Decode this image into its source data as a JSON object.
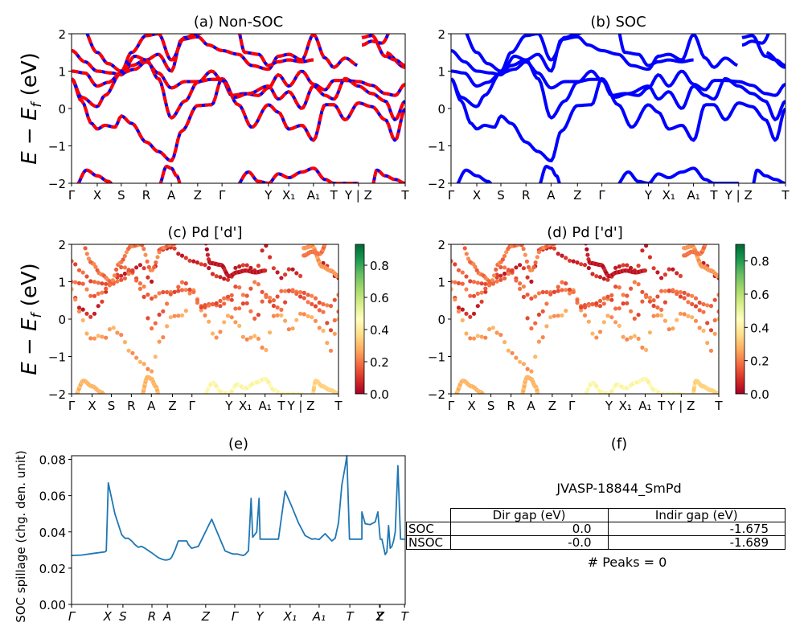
{
  "figure": {
    "material_id": "JVASP-18844_SmPd",
    "peaks_text": "# Peaks = 0"
  },
  "chart_data": [
    {
      "id": "a",
      "type": "line",
      "title": "(a) Non-SOC",
      "xlabel": "",
      "ylabel": "E − E_f (eV)",
      "ylim": [
        -2,
        2
      ],
      "yticks": [
        "2",
        "1",
        "0",
        "−1",
        "−2"
      ],
      "ytick_values": [
        2,
        1,
        0,
        -1,
        -2
      ],
      "xticks": [
        "Γ",
        "X",
        "S",
        "R",
        "A",
        "Z",
        "Γ",
        "Y",
        "X₁",
        "A₁",
        "T",
        "Y | Z",
        "T"
      ],
      "xtick_positions": [
        0,
        0.077,
        0.149,
        0.224,
        0.299,
        0.378,
        0.451,
        0.59,
        0.651,
        0.725,
        0.786,
        0.86,
        1.0
      ],
      "style": "red-blue dashed",
      "colors": {
        "primary": "#ff0000",
        "secondary": "#0000ff"
      },
      "grid": false
    },
    {
      "id": "b",
      "type": "line",
      "title": "(b) SOC",
      "xlabel": "",
      "ylabel": "",
      "ylim": [
        -2,
        2
      ],
      "yticks": [
        "2",
        "1",
        "0",
        "−1",
        "−2"
      ],
      "ytick_values": [
        2,
        1,
        0,
        -1,
        -2
      ],
      "xticks": [
        "Γ",
        "X",
        "S",
        "R",
        "A",
        "Z",
        "Γ",
        "Y",
        "X₁",
        "A₁",
        "T",
        "Y | Z",
        "T"
      ],
      "xtick_positions": [
        0,
        0.077,
        0.149,
        0.224,
        0.299,
        0.378,
        0.451,
        0.59,
        0.651,
        0.725,
        0.786,
        0.86,
        1.0
      ],
      "style": "solid",
      "colors": {
        "primary": "#0000ff"
      },
      "grid": false
    },
    {
      "id": "c",
      "type": "scatter",
      "title": "(c)  Pd ['d']",
      "ylabel": "E − E_f (eV)",
      "ylim": [
        -2,
        2
      ],
      "yticks": [
        "2",
        "1",
        "0",
        "−1",
        "−2"
      ],
      "ytick_values": [
        2,
        1,
        0,
        -1,
        -2
      ],
      "xticks": [
        "Γ",
        "X",
        "S",
        "R",
        "A",
        "Z",
        "Γ",
        "Y",
        "X₁",
        "A₁",
        "T",
        "Y | Z",
        "T"
      ],
      "xtick_positions": [
        0,
        0.077,
        0.149,
        0.224,
        0.299,
        0.378,
        0.451,
        0.59,
        0.651,
        0.725,
        0.786,
        0.86,
        1.0
      ],
      "colorbar": {
        "colormap": "RdYlGn",
        "range": [
          0,
          0.93
        ],
        "ticks": [
          "0.0",
          "0.2",
          "0.4",
          "0.6",
          "0.8"
        ],
        "tick_values": [
          0,
          0.2,
          0.4,
          0.6,
          0.8
        ]
      },
      "grid": false
    },
    {
      "id": "d",
      "type": "scatter",
      "title": "(d) Pd ['d']",
      "ylabel": "",
      "ylim": [
        -2,
        2
      ],
      "yticks": [
        "2",
        "1",
        "0",
        "−1",
        "−2"
      ],
      "ytick_values": [
        2,
        1,
        0,
        -1,
        -2
      ],
      "xticks": [
        "Γ",
        "X",
        "S",
        "R",
        "A",
        "Z",
        "Γ",
        "Y",
        "X₁",
        "A₁",
        "T",
        "Y | Z",
        "T"
      ],
      "xtick_positions": [
        0,
        0.077,
        0.149,
        0.224,
        0.299,
        0.378,
        0.451,
        0.59,
        0.651,
        0.725,
        0.786,
        0.86,
        1.0
      ],
      "colorbar": {
        "colormap": "RdYlGn",
        "range": [
          0,
          0.9
        ],
        "ticks": [
          "0.0",
          "0.2",
          "0.4",
          "0.6",
          "0.8"
        ],
        "tick_values": [
          0,
          0.2,
          0.4,
          0.6,
          0.8
        ]
      },
      "grid": false
    },
    {
      "id": "e",
      "type": "line",
      "title": "(e)",
      "xlabel": "",
      "ylabel": "SOC spillage (chg. den. unit)",
      "ylim": [
        0,
        0.082
      ],
      "yticks": [
        "0.00",
        "0.02",
        "0.04",
        "0.06",
        "0.08"
      ],
      "ytick_values": [
        0,
        0.02,
        0.04,
        0.06,
        0.08
      ],
      "xticks": [
        "Γ",
        "X",
        "S",
        "R",
        "A",
        "Z",
        "Γ",
        "Y",
        "X₁",
        "A₁",
        "T",
        "Y",
        "Z",
        "T"
      ],
      "xtick_positions": [
        0,
        0.108,
        0.154,
        0.241,
        0.287,
        0.402,
        0.489,
        0.564,
        0.655,
        0.742,
        0.834,
        0.923,
        0.925,
        0.998
      ],
      "color": "#1f77b4",
      "x": [
        0,
        0.03,
        0.06,
        0.1,
        0.104,
        0.11,
        0.13,
        0.15,
        0.16,
        0.17,
        0.18,
        0.19,
        0.2,
        0.21,
        0.22,
        0.24,
        0.26,
        0.27,
        0.28,
        0.285,
        0.295,
        0.3,
        0.31,
        0.32,
        0.33,
        0.345,
        0.35,
        0.36,
        0.38,
        0.42,
        0.46,
        0.48,
        0.485,
        0.492,
        0.498,
        0.503,
        0.515,
        0.52,
        0.53,
        0.538,
        0.543,
        0.555,
        0.562,
        0.565,
        0.575,
        0.6,
        0.62,
        0.64,
        0.66,
        0.68,
        0.7,
        0.72,
        0.73,
        0.742,
        0.76,
        0.78,
        0.79,
        0.8,
        0.81,
        0.82,
        0.825,
        0.833,
        0.837,
        0.87,
        0.87,
        0.88,
        0.895,
        0.91,
        0.918,
        0.925,
        0.93,
        0.94,
        0.945,
        0.95,
        0.955,
        0.96,
        0.965,
        0.97,
        0.978,
        0.986,
        0.992,
        0.998
      ],
      "values": [
        0.027,
        0.0272,
        0.028,
        0.029,
        0.0295,
        0.067,
        0.05,
        0.0385,
        0.0365,
        0.0365,
        0.035,
        0.033,
        0.0315,
        0.032,
        0.031,
        0.0285,
        0.0258,
        0.025,
        0.0245,
        0.0245,
        0.025,
        0.026,
        0.03,
        0.035,
        0.035,
        0.035,
        0.033,
        0.031,
        0.032,
        0.047,
        0.0295,
        0.028,
        0.0278,
        0.0278,
        0.0278,
        0.0275,
        0.027,
        0.0275,
        0.0295,
        0.0585,
        0.037,
        0.04,
        0.0585,
        0.036,
        0.036,
        0.036,
        0.036,
        0.0625,
        0.054,
        0.045,
        0.038,
        0.036,
        0.0362,
        0.0358,
        0.039,
        0.035,
        0.0365,
        0.045,
        0.066,
        0.076,
        0.082,
        0.036,
        0.036,
        0.036,
        0.051,
        0.0445,
        0.044,
        0.0455,
        0.051,
        0.036,
        0.036,
        0.0275,
        0.029,
        0.0435,
        0.031,
        0.032,
        0.035,
        0.04,
        0.0765,
        0.036,
        0.036,
        0.036
      ],
      "grid": false
    },
    {
      "id": "f",
      "type": "table",
      "title": "(f)",
      "subtitle": "JVASP-18844_SmPd",
      "columns": [
        "",
        "Dir gap (eV)",
        "Indir gap (eV)"
      ],
      "rows": [
        {
          "label": "SOC",
          "dir_gap": "0.0",
          "indir_gap": "-1.675"
        },
        {
          "label": "NSOC",
          "dir_gap": "-0.0",
          "indir_gap": "-1.689"
        }
      ],
      "footer": "# Peaks = 0"
    }
  ],
  "bands": [
    {
      "x": [
        0,
        0.03,
        0.077,
        0.1,
        0.149,
        0.18,
        0.224,
        0.26,
        0.299,
        0.33,
        0.378,
        0.41,
        0.451,
        0.5,
        0.54,
        0.59,
        0.62,
        0.651,
        0.69,
        0.725,
        0.76,
        0.786,
        0.82,
        0.86,
        0.9,
        0.94,
        1.0
      ],
      "y": [
        0.8,
        0.3,
        0.05,
        0.35,
        0.95,
        1.15,
        1.3,
        1.45,
        1.0,
        1.85,
        1.92,
        1.7,
        1.55,
        1.45,
        1.15,
        1.05,
        1.4,
        1.45,
        1.3,
        1.98,
        1.35,
        1.1,
        1.35,
        1.15,
        null,
        1.5,
        1.1
      ],
      "w": 0.08
    },
    {
      "x": [
        0,
        0.04,
        0.077,
        0.11,
        0.149,
        0.19,
        0.224,
        0.26,
        0.299,
        0.34,
        0.378,
        0.42,
        0.451,
        0.48,
        0.52,
        0.56,
        0.59,
        0.62,
        0.651,
        0.69,
        0.725,
        0.76,
        0.786,
        0.82,
        0.86,
        0.9,
        0.94,
        0.97,
        1.0
      ],
      "y": [
        1.0,
        0.95,
        0.6,
        0.7,
        0.95,
        1.05,
        1.25,
        0.95,
        0.55,
        0.72,
        0.72,
        0.78,
        0.78,
        0.35,
        0.4,
        0.35,
        0.55,
        0.9,
        0.6,
        1.0,
        0.65,
        0.5,
        0.75,
        0.75,
        0.72,
        0.62,
        0.4,
        0.35,
        0.65
      ],
      "w": 0.18
    },
    {
      "x": [
        0,
        0.03,
        0.06,
        0.077,
        0.1,
        0.13,
        0.149,
        0.18,
        0.224,
        0.26,
        0.299,
        0.33,
        0.378,
        0.42,
        0.451,
        0.5,
        0.54,
        0.59,
        0.62,
        0.651,
        0.69,
        0.725,
        0.76,
        0.786,
        0.82,
        0.86,
        0.9,
        0.94,
        0.97,
        1.0
      ],
      "y": [
        0.8,
        0.2,
        -0.4,
        -0.55,
        -0.45,
        -0.5,
        -0.2,
        -0.4,
        -0.9,
        -1.15,
        -1.4,
        -0.6,
        0.08,
        0.1,
        0.8,
        0.1,
        -0.5,
        0.1,
        -0.1,
        -0.55,
        -0.45,
        -0.85,
        0.1,
        0.1,
        -0.3,
        0.15,
        0.05,
        -0.3,
        -0.85,
        0.0
      ],
      "w": 0.26
    },
    {
      "x": [
        0,
        0.04,
        0.077,
        0.12,
        0.149,
        0.19,
        0.224,
        0.26,
        0.299,
        0.34,
        0.378,
        0.42,
        0.451,
        0.49,
        0.53,
        0.59,
        0.62,
        0.651,
        0.69,
        0.725,
        0.76,
        0.786,
        0.82,
        0.86,
        0.9,
        0.94,
        0.97,
        1.0
      ],
      "y": [
        1.55,
        1.25,
        1.0,
        0.95,
        0.9,
        1.4,
        1.3,
        0.8,
        -0.25,
        0.2,
        0.7,
        1.0,
        0.75,
        0.3,
        0.4,
        0.6,
        0.25,
        0.45,
        0.0,
        0.6,
        0.35,
        0.25,
        0.8,
        0.6,
        0.4,
        0.2,
        -0.3,
        0.2
      ],
      "w": 0.16
    },
    {
      "x": [
        0,
        0.03,
        0.077,
        0.11,
        0.149,
        0.18,
        0.224,
        0.26,
        0.299,
        0.34,
        0.378,
        0.41,
        0.451
      ],
      "y": [
        2.6,
        2.2,
        1.5,
        1.2,
        1.0,
        1.5,
        1.95,
        2.0,
        1.3,
        1.9,
        2.0,
        2.1,
        2.4
      ],
      "w": 0.2
    },
    {
      "x": [
        0.01,
        0.045,
        0.077,
        0.11,
        0.13
      ],
      "y": [
        -2.1,
        -1.65,
        -1.8,
        -1.95,
        -2.1
      ],
      "w": 0.3
    },
    {
      "x": [
        0.26,
        0.285,
        0.299,
        0.315,
        0.33
      ],
      "y": [
        -2.1,
        -1.55,
        -1.6,
        -1.8,
        -2.1
      ],
      "w": 0.3
    },
    {
      "x": [
        0.49,
        0.53,
        0.56,
        0.59,
        0.62,
        0.651,
        0.69,
        0.725,
        0.76,
        0.786,
        0.82,
        0.86
      ],
      "y": [
        -2.1,
        -1.7,
        -1.95,
        -2.0,
        -1.75,
        -1.85,
        -1.7,
        -1.6,
        -1.9,
        -2.0,
        -2.0,
        -2.0
      ],
      "w": 0.45
    },
    {
      "x": [
        0.9,
        0.915,
        0.94,
        0.97,
        1.0
      ],
      "y": [
        -2.1,
        -1.65,
        -1.8,
        -1.9,
        -2.0
      ],
      "w": 0.35
    },
    {
      "x": [
        0.49,
        0.52,
        0.56,
        0.59,
        0.62,
        0.651,
        0.69,
        0.725
      ],
      "y": [
        2.4,
        1.5,
        1.45,
        1.15,
        1.25,
        1.3,
        1.25,
        1.3
      ],
      "w": 0.05
    },
    {
      "x": [
        0.87,
        0.9,
        0.94,
        0.97,
        1.0
      ],
      "y": [
        1.9,
        1.95,
        1.4,
        1.3,
        1.15
      ],
      "w": 0.25
    },
    {
      "x": [
        0.87,
        0.9,
        0.93,
        0.97,
        1.0
      ],
      "y": [
        1.7,
        1.8,
        1.75,
        2.3,
        2.3
      ],
      "w": 0.2
    }
  ]
}
